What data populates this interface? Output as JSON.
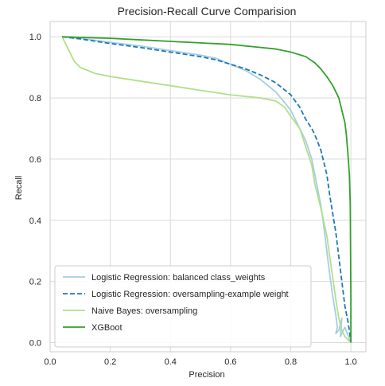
{
  "chart_data": {
    "type": "line",
    "title": "Precision-Recall Curve Comparision",
    "xlabel": "Precision",
    "ylabel": "Recall",
    "xlim": [
      0.0,
      1.05
    ],
    "ylim": [
      -0.03,
      1.05
    ],
    "xticks": [
      "0.0",
      "0.2",
      "0.4",
      "0.6",
      "0.8",
      "1.0"
    ],
    "yticks": [
      "0.0",
      "0.2",
      "0.4",
      "0.6",
      "0.8",
      "1.0"
    ],
    "grid": true,
    "legend_position": "lower-left",
    "series": [
      {
        "name": "Logistic Regression: balanced class_weights",
        "color": "#a6cee3",
        "dash": "solid",
        "points": [
          [
            0.04,
            1.0
          ],
          [
            0.1,
            0.995
          ],
          [
            0.2,
            0.982
          ],
          [
            0.3,
            0.97
          ],
          [
            0.4,
            0.955
          ],
          [
            0.5,
            0.94
          ],
          [
            0.55,
            0.93
          ],
          [
            0.6,
            0.91
          ],
          [
            0.65,
            0.89
          ],
          [
            0.7,
            0.86
          ],
          [
            0.75,
            0.82
          ],
          [
            0.78,
            0.785
          ],
          [
            0.8,
            0.76
          ],
          [
            0.82,
            0.72
          ],
          [
            0.83,
            0.7
          ],
          [
            0.85,
            0.66
          ],
          [
            0.87,
            0.6
          ],
          [
            0.88,
            0.55
          ],
          [
            0.9,
            0.45
          ],
          [
            0.91,
            0.38
          ],
          [
            0.92,
            0.3
          ],
          [
            0.93,
            0.22
          ],
          [
            0.94,
            0.15
          ],
          [
            0.95,
            0.09
          ],
          [
            0.955,
            0.05
          ],
          [
            0.95,
            0.03
          ],
          [
            0.96,
            0.04
          ],
          [
            0.97,
            0.08
          ],
          [
            0.965,
            0.02
          ],
          [
            0.98,
            0.05
          ],
          [
            1.0,
            0.0
          ]
        ]
      },
      {
        "name": "Logistic Regression: oversampling-example weight",
        "color": "#1f78b4",
        "dash": "dashed",
        "points": [
          [
            0.04,
            1.0
          ],
          [
            0.1,
            0.993
          ],
          [
            0.2,
            0.978
          ],
          [
            0.3,
            0.965
          ],
          [
            0.4,
            0.95
          ],
          [
            0.5,
            0.935
          ],
          [
            0.55,
            0.925
          ],
          [
            0.6,
            0.91
          ],
          [
            0.65,
            0.895
          ],
          [
            0.7,
            0.875
          ],
          [
            0.75,
            0.85
          ],
          [
            0.8,
            0.81
          ],
          [
            0.83,
            0.77
          ],
          [
            0.85,
            0.73
          ],
          [
            0.87,
            0.7
          ],
          [
            0.88,
            0.68
          ],
          [
            0.9,
            0.63
          ],
          [
            0.92,
            0.55
          ],
          [
            0.93,
            0.48
          ],
          [
            0.94,
            0.42
          ],
          [
            0.95,
            0.36
          ],
          [
            0.96,
            0.28
          ],
          [
            0.97,
            0.2
          ],
          [
            0.98,
            0.12
          ],
          [
            0.99,
            0.07
          ],
          [
            0.995,
            0.04
          ],
          [
            1.0,
            0.0
          ]
        ]
      },
      {
        "name": "Naive Bayes: oversampling",
        "color": "#b2df8a",
        "dash": "solid",
        "points": [
          [
            0.04,
            1.0
          ],
          [
            0.06,
            0.96
          ],
          [
            0.08,
            0.92
          ],
          [
            0.1,
            0.9
          ],
          [
            0.15,
            0.88
          ],
          [
            0.2,
            0.87
          ],
          [
            0.3,
            0.855
          ],
          [
            0.4,
            0.84
          ],
          [
            0.5,
            0.825
          ],
          [
            0.6,
            0.81
          ],
          [
            0.7,
            0.8
          ],
          [
            0.75,
            0.79
          ],
          [
            0.78,
            0.77
          ],
          [
            0.8,
            0.74
          ],
          [
            0.83,
            0.7
          ],
          [
            0.85,
            0.64
          ],
          [
            0.87,
            0.58
          ],
          [
            0.88,
            0.52
          ],
          [
            0.9,
            0.44
          ],
          [
            0.92,
            0.35
          ],
          [
            0.93,
            0.28
          ],
          [
            0.94,
            0.21
          ],
          [
            0.95,
            0.14
          ],
          [
            0.96,
            0.08
          ],
          [
            0.97,
            0.04
          ],
          [
            0.98,
            0.02
          ],
          [
            1.0,
            0.0
          ]
        ]
      },
      {
        "name": "XGBoot",
        "color": "#33a02c",
        "dash": "solid",
        "points": [
          [
            0.04,
            1.0
          ],
          [
            0.1,
            0.998
          ],
          [
            0.2,
            0.995
          ],
          [
            0.3,
            0.99
          ],
          [
            0.4,
            0.985
          ],
          [
            0.5,
            0.98
          ],
          [
            0.6,
            0.975
          ],
          [
            0.7,
            0.965
          ],
          [
            0.75,
            0.96
          ],
          [
            0.8,
            0.95
          ],
          [
            0.85,
            0.935
          ],
          [
            0.88,
            0.915
          ],
          [
            0.9,
            0.895
          ],
          [
            0.92,
            0.87
          ],
          [
            0.94,
            0.84
          ],
          [
            0.96,
            0.8
          ],
          [
            0.97,
            0.76
          ],
          [
            0.98,
            0.72
          ],
          [
            0.985,
            0.68
          ],
          [
            0.99,
            0.62
          ],
          [
            0.995,
            0.55
          ],
          [
            0.998,
            0.45
          ],
          [
            0.999,
            0.3
          ],
          [
            1.0,
            0.15
          ],
          [
            1.0,
            0.0
          ]
        ]
      }
    ]
  }
}
